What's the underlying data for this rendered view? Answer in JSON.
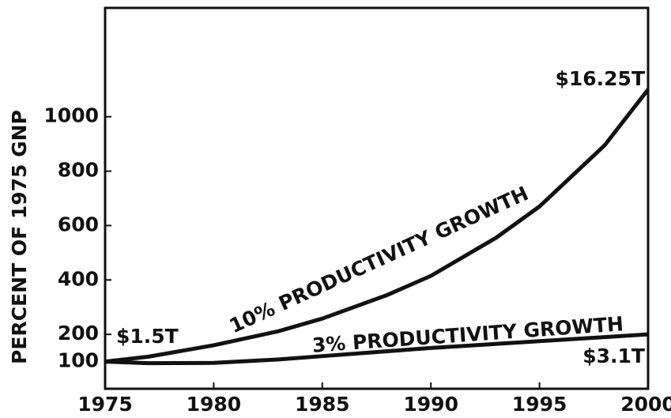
{
  "chart_data": {
    "type": "line",
    "y_label": "PERCENT OF 1975 GNP",
    "x": [
      1975,
      1977,
      1980,
      1983,
      1985,
      1988,
      1990,
      1993,
      1995,
      1998,
      2000
    ],
    "series": [
      {
        "name": "10% PRODUCTIVITY GROWTH",
        "color": "#111111",
        "values": [
          100,
          118,
          160,
          212,
          258,
          345,
          415,
          555,
          670,
          895,
          1100
        ]
      },
      {
        "name": "3% PRODUCTIVITY GROWTH",
        "color": "#111111",
        "values": [
          100,
          94,
          95,
          108,
          120,
          138,
          150,
          165,
          175,
          190,
          200
        ]
      }
    ],
    "annotations": [
      "$1.5T",
      "$16.25T",
      "$3.1T"
    ],
    "xlim": [
      1975,
      2000
    ],
    "xticks": [
      1975,
      1980,
      1985,
      1990,
      1995,
      2000
    ],
    "ylim": [
      0,
      1400
    ],
    "yticks": [
      100,
      200,
      400,
      600,
      800,
      1000
    ],
    "grid": false
  }
}
